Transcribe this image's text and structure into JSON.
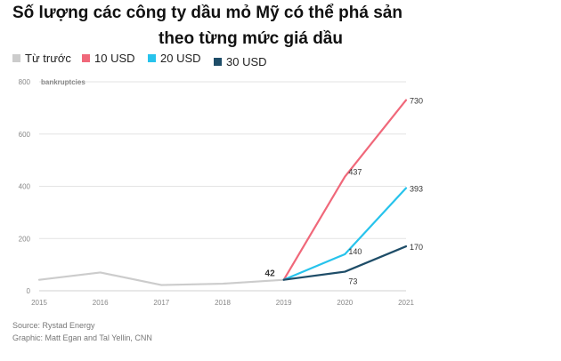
{
  "title_line1": "Số lượng các công ty dầu mỏ Mỹ có thể phá sản",
  "title_line2": "theo từng mức giá dầu",
  "footer": {
    "source": "Source: Rystad Energy",
    "graphic": "Graphic: Matt Egan and Tal Yellin, CNN"
  },
  "chart_data": {
    "type": "line",
    "ylabel": "bankruptcies",
    "x": [
      "2015",
      "2016",
      "2017",
      "2018",
      "2019",
      "2020",
      "2021"
    ],
    "ylim": [
      0,
      800
    ],
    "yticks": [
      "0",
      "200",
      "400",
      "600",
      "800"
    ],
    "grid": true,
    "legend_position": "top-left",
    "series": [
      {
        "name": "Từ trước",
        "color": "#cccccc",
        "x": [
          "2015",
          "2016",
          "2017",
          "2018",
          "2019"
        ],
        "values": [
          42,
          70,
          22,
          27,
          42
        ]
      },
      {
        "name": "10 USD",
        "color": "#f0687a",
        "x": [
          "2019",
          "2020",
          "2021"
        ],
        "values": [
          42,
          437,
          730
        ]
      },
      {
        "name": "20 USD",
        "color": "#27c3ec",
        "x": [
          "2019",
          "2020",
          "2021"
        ],
        "values": [
          42,
          140,
          393
        ]
      },
      {
        "name": "30 USD",
        "color": "#1e4d68",
        "x": [
          "2019",
          "2020",
          "2021"
        ],
        "values": [
          42,
          73,
          170
        ]
      }
    ],
    "data_labels": [
      {
        "text": "42",
        "x": "2019",
        "y": 42,
        "bold": true
      },
      {
        "text": "437",
        "x": "2020",
        "y": 437
      },
      {
        "text": "140",
        "x": "2020",
        "y": 140
      },
      {
        "text": "73",
        "x": "2020",
        "y": 73
      },
      {
        "text": "730",
        "x": "2021",
        "y": 730
      },
      {
        "text": "393",
        "x": "2021",
        "y": 393
      },
      {
        "text": "170",
        "x": "2021",
        "y": 170
      }
    ]
  }
}
